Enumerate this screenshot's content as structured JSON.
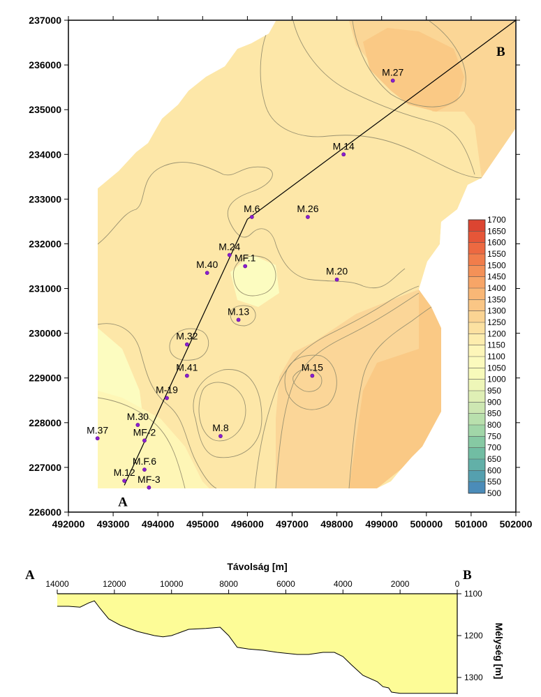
{
  "chart_data": [
    {
      "type": "contour-map",
      "xlim": [
        492000,
        502000
      ],
      "ylim": [
        226000,
        237000
      ],
      "x_ticks": [
        "492000",
        "493000",
        "494000",
        "495000",
        "496000",
        "497000",
        "498000",
        "499000",
        "500000",
        "501000",
        "502000"
      ],
      "y_ticks": [
        "226000",
        "227000",
        "228000",
        "229000",
        "230000",
        "231000",
        "232000",
        "233000",
        "234000",
        "235000",
        "236000",
        "237000"
      ],
      "colorbar": {
        "min": 500,
        "max": 1700,
        "step": 50,
        "labels": [
          "1700",
          "1650",
          "1600",
          "1550",
          "1500",
          "1450",
          "1400",
          "1350",
          "1300",
          "1250",
          "1200",
          "1150",
          "1100",
          "1050",
          "1000",
          "950",
          "900",
          "850",
          "800",
          "750",
          "700",
          "650",
          "600",
          "550",
          "500"
        ]
      },
      "section_line": {
        "start": {
          "label": "A",
          "x": 493250,
          "y": 226600
        },
        "bend": {
          "x": 496000,
          "y": 232550
        },
        "end": {
          "label": "B",
          "x": 502000,
          "y": 237000
        }
      },
      "wells": [
        {
          "name": "M.27",
          "x": 499250,
          "y": 235650
        },
        {
          "name": "M.14",
          "x": 498150,
          "y": 234000
        },
        {
          "name": "M.6",
          "x": 496100,
          "y": 232600
        },
        {
          "name": "M.26",
          "x": 497350,
          "y": 232600
        },
        {
          "name": "M.24",
          "x": 495600,
          "y": 231750
        },
        {
          "name": "MF.1",
          "x": 495950,
          "y": 231500
        },
        {
          "name": "M.40",
          "x": 495100,
          "y": 231350
        },
        {
          "name": "M.20",
          "x": 498000,
          "y": 231200
        },
        {
          "name": "M.13",
          "x": 495800,
          "y": 230300
        },
        {
          "name": "M.32",
          "x": 494650,
          "y": 229750
        },
        {
          "name": "M.41",
          "x": 494650,
          "y": 229050
        },
        {
          "name": "M.15",
          "x": 497450,
          "y": 229050
        },
        {
          "name": "M-19",
          "x": 494200,
          "y": 228550
        },
        {
          "name": "M.30",
          "x": 493550,
          "y": 227950
        },
        {
          "name": "M.37",
          "x": 492650,
          "y": 227650
        },
        {
          "name": "MF-2",
          "x": 493700,
          "y": 227600
        },
        {
          "name": "M.8",
          "x": 495400,
          "y": 227700
        },
        {
          "name": "M.F.6",
          "x": 493700,
          "y": 226950
        },
        {
          "name": "M.12",
          "x": 493250,
          "y": 226700
        },
        {
          "name": "MF-3",
          "x": 493800,
          "y": 226550
        }
      ],
      "colors": {
        "low": "#fcfcc0",
        "mid": "#fde7a8",
        "high": "#fac985",
        "contour": "#9a9270"
      }
    },
    {
      "type": "area",
      "xlabel": "Távolság [m]",
      "ylabel": "Mélység [m]",
      "xlim": [
        14000,
        0
      ],
      "ylim": [
        1100,
        1340
      ],
      "left_label": "A",
      "right_label": "B",
      "x_ticks": [
        "14000",
        "12000",
        "10000",
        "8000",
        "6000",
        "4000",
        "2000",
        "0"
      ],
      "y_ticks": [
        "1100",
        "1200",
        "1300"
      ],
      "x": [
        14000,
        13600,
        13200,
        12900,
        12700,
        12500,
        12200,
        11800,
        11200,
        10600,
        10300,
        10000,
        9400,
        8800,
        8300,
        8000,
        7700,
        7300,
        6800,
        6300,
        5600,
        5200,
        4700,
        4300,
        4000,
        3700,
        3300,
        2800,
        2600,
        2400,
        2300,
        2000,
        1000,
        0
      ],
      "y": [
        1130,
        1130,
        1132,
        1122,
        1117,
        1135,
        1160,
        1175,
        1190,
        1200,
        1203,
        1200,
        1185,
        1183,
        1180,
        1200,
        1228,
        1232,
        1235,
        1240,
        1245,
        1245,
        1240,
        1240,
        1250,
        1270,
        1295,
        1310,
        1322,
        1325,
        1335,
        1338,
        1338,
        1338
      ],
      "fill": "#fdfc97"
    }
  ]
}
